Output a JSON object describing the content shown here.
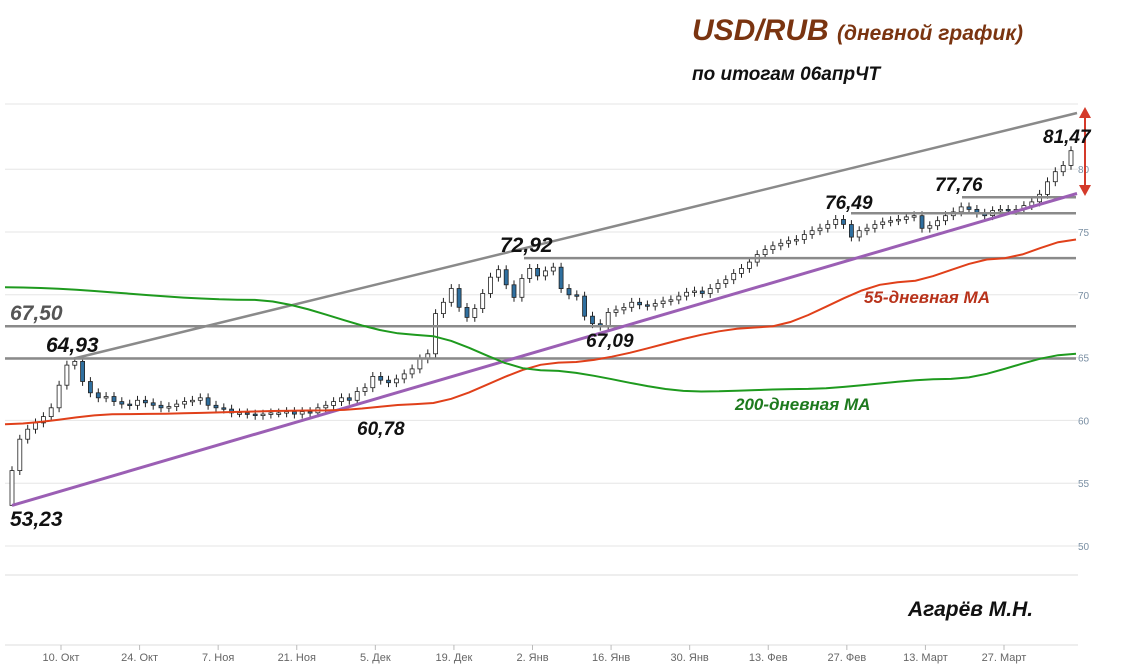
{
  "header": {
    "title_main": "USD/RUB",
    "title_sub": "(дневной график)",
    "subtitle": "по итогам 06апрЧТ"
  },
  "author": "Агарёв М.Н.",
  "chart_data": {
    "type": "candlestick",
    "y_axis": {
      "ticks": [
        50,
        55,
        60,
        65,
        70,
        75,
        80
      ],
      "ylim": [
        50,
        83
      ],
      "side": "right"
    },
    "x_axis": {
      "ticks": [
        "10. Окт",
        "24. Окт",
        "7. Ноя",
        "21. Ноя",
        "5. Дек",
        "19. Дек",
        "2. Янв",
        "16. Янв",
        "30. Янв",
        "13. Фев",
        "27. Фев",
        "13. Март",
        "27. Март"
      ]
    },
    "grid": true,
    "colors": {
      "candle_up": "#ffffff",
      "candle_down": "#2f6f9f",
      "ma55": "#e0401a",
      "ma200": "#1e9a1e",
      "trend_support": "#9b5fb4",
      "channel": "#8a8a8a",
      "level": "#8a8a8a",
      "arrow": "#d43a2a"
    },
    "closes": [
      56.0,
      58.5,
      59.3,
      59.8,
      60.3,
      61.0,
      62.8,
      64.4,
      64.7,
      63.1,
      62.2,
      61.8,
      61.9,
      61.5,
      61.3,
      61.2,
      61.6,
      61.4,
      61.2,
      61.0,
      61.1,
      61.3,
      61.5,
      61.6,
      61.8,
      61.2,
      61.0,
      60.9,
      60.6,
      60.6,
      60.5,
      60.4,
      60.5,
      60.6,
      60.6,
      60.7,
      60.5,
      60.7,
      60.6,
      61.0,
      61.2,
      61.5,
      61.8,
      61.6,
      62.3,
      62.6,
      63.5,
      63.2,
      63.0,
      63.3,
      63.7,
      64.1,
      64.9,
      65.3,
      68.5,
      69.4,
      70.5,
      69.0,
      68.2,
      68.9,
      70.1,
      71.4,
      72.0,
      70.8,
      69.8,
      71.3,
      72.1,
      71.5,
      71.9,
      72.2,
      70.5,
      70.0,
      69.9,
      68.3,
      67.7,
      67.5,
      68.6,
      68.8,
      69.0,
      69.4,
      69.2,
      69.1,
      69.3,
      69.5,
      69.6,
      69.9,
      70.2,
      70.3,
      70.1,
      70.5,
      70.9,
      71.2,
      71.7,
      72.1,
      72.6,
      73.2,
      73.6,
      73.9,
      74.1,
      74.3,
      74.4,
      74.8,
      75.1,
      75.3,
      75.6,
      76.0,
      75.6,
      74.6,
      75.1,
      75.3,
      75.6,
      75.8,
      75.9,
      76.0,
      76.2,
      76.3,
      75.3,
      75.5,
      75.9,
      76.3,
      76.6,
      77.0,
      76.8,
      76.5,
      76.3,
      76.7,
      76.8,
      76.7,
      76.8,
      77.1,
      77.4,
      78.0,
      79.0,
      79.8,
      80.3,
      81.47
    ],
    "series": [
      {
        "name": "55-дневная МА",
        "start": 59.7,
        "end": 74.4
      },
      {
        "name": "200-дневная МА",
        "start": 70.6,
        "end": 65.3
      }
    ],
    "levels": [
      64.93,
      67.5,
      72.92,
      76.49,
      77.76
    ],
    "annotations": [
      {
        "text": "53,23",
        "value": 53.23
      },
      {
        "text": "64,93",
        "value": 64.93
      },
      {
        "text": "67,50",
        "value": 67.5
      },
      {
        "text": "60,78",
        "value": 60.78
      },
      {
        "text": "72,92",
        "value": 72.92
      },
      {
        "text": "67,09",
        "value": 67.09
      },
      {
        "text": "76,49",
        "value": 76.49
      },
      {
        "text": "77,76",
        "value": 77.76
      },
      {
        "text": "81,47",
        "value": 81.47
      }
    ]
  }
}
